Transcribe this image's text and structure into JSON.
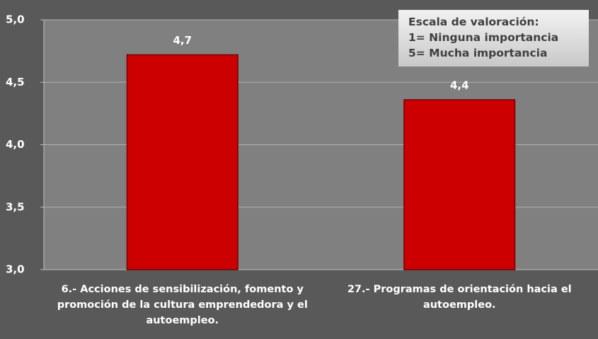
{
  "chart_data": {
    "type": "bar",
    "categories": [
      "6.- Acciones de sensibilización, fomento y promoción de la cultura emprendedora y el autoempleo.",
      "27.- Programas de orientación hacia el autoempleo."
    ],
    "values": [
      4.72,
      4.36
    ],
    "value_labels": [
      "4,7",
      "4,4"
    ],
    "color": "#cc0000",
    "ylim": [
      3.0,
      5.0
    ],
    "yticks": [
      {
        "value": 3.0,
        "label": "3,0"
      },
      {
        "value": 3.5,
        "label": "3,5"
      },
      {
        "value": 4.0,
        "label": "4,0"
      },
      {
        "value": 4.5,
        "label": "4,5"
      },
      {
        "value": 5.0,
        "label": "5,0"
      }
    ],
    "grid": true,
    "annotation": [
      "Escala de valoración:",
      "1= Ninguna importancia",
      "5= Mucha importancia"
    ]
  }
}
